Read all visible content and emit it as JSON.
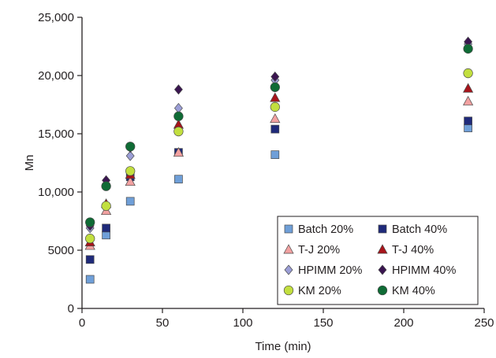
{
  "chart_data": {
    "type": "scatter",
    "title": "",
    "xlabel": "Time (min)",
    "ylabel": "Mn",
    "xlim": [
      0,
      250
    ],
    "ylim": [
      0,
      25000
    ],
    "x_ticks": [
      0,
      50,
      100,
      150,
      200,
      250
    ],
    "x_tick_labels": [
      "0",
      "50",
      "100",
      "150",
      "200",
      "250"
    ],
    "y_ticks": [
      0,
      5000,
      10000,
      15000,
      20000,
      25000
    ],
    "y_tick_labels": [
      "0",
      "5000",
      "10,000",
      "15,000",
      "20,000",
      "25,000"
    ],
    "grid": false,
    "legend_position": "bottom-right",
    "legend_columns": 2,
    "series": [
      {
        "name": "Batch 20%",
        "marker": "square",
        "color": "#6f9fd8",
        "x": [
          5,
          15,
          30,
          60,
          120,
          240
        ],
        "y": [
          2500,
          6300,
          9200,
          11100,
          13200,
          15500
        ]
      },
      {
        "name": "Batch 40%",
        "marker": "square",
        "color": "#1f2a7a",
        "x": [
          5,
          15,
          30,
          60,
          120,
          240
        ],
        "y": [
          4200,
          6900,
          11300,
          13400,
          15400,
          16100
        ]
      },
      {
        "name": "T-J 20%",
        "marker": "triangle",
        "color": "#f2a1a1",
        "x": [
          5,
          15,
          30,
          60,
          120,
          240
        ],
        "y": [
          5400,
          8400,
          10900,
          13400,
          16300,
          17800
        ]
      },
      {
        "name": "T-J 40%",
        "marker": "triangle",
        "color": "#a8141b",
        "x": [
          5,
          15,
          30,
          60,
          120,
          240
        ],
        "y": [
          5700,
          9000,
          11500,
          15800,
          18100,
          18900
        ]
      },
      {
        "name": "HPIMM 20%",
        "marker": "diamond",
        "color": "#9b9ed6",
        "x": [
          5,
          15,
          30,
          60,
          120,
          240
        ],
        "y": [
          6900,
          10700,
          13100,
          17200,
          19600,
          22700
        ]
      },
      {
        "name": "HPIMM 40%",
        "marker": "diamond",
        "color": "#3a1550",
        "x": [
          5,
          15,
          30,
          60,
          120,
          240
        ],
        "y": [
          7100,
          11000,
          13800,
          18800,
          19900,
          22900
        ]
      },
      {
        "name": "KM 20%",
        "marker": "circle",
        "color": "#c2df3f",
        "x": [
          5,
          15,
          30,
          60,
          120,
          240
        ],
        "y": [
          6000,
          8800,
          11800,
          15200,
          17300,
          20200
        ]
      },
      {
        "name": "KM 40%",
        "marker": "circle",
        "color": "#0f6b35",
        "x": [
          5,
          15,
          30,
          60,
          120,
          240
        ],
        "y": [
          7400,
          10500,
          13900,
          16500,
          19000,
          22300
        ]
      }
    ]
  }
}
